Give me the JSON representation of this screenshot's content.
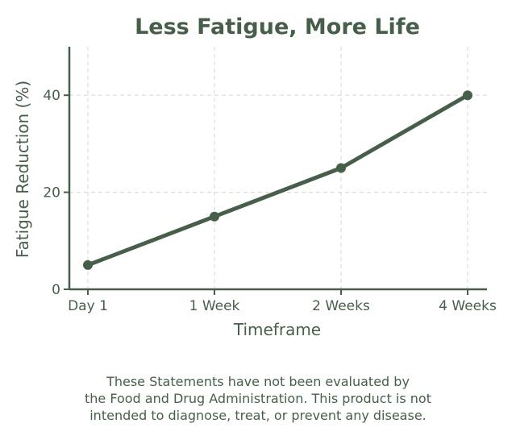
{
  "chart_data": {
    "type": "line",
    "title": "Less Fatigue, More Life",
    "xlabel": "Timeframe",
    "ylabel": "Fatigue Reduction (%)",
    "categories": [
      "Day 1",
      "1 Week",
      "2 Weeks",
      "4 Weeks"
    ],
    "series": [
      {
        "values": [
          5,
          15,
          25,
          40
        ]
      }
    ],
    "ylim": [
      0,
      50
    ],
    "yticks": [
      0,
      20,
      40
    ],
    "grid": true,
    "color": "#475f4a"
  },
  "disclaimer": {
    "lines": [
      "These Statements have not been evaluated by",
      "the Food and Drug Administration. This product is not",
      "intended to diagnose, treat, or prevent any disease."
    ]
  }
}
